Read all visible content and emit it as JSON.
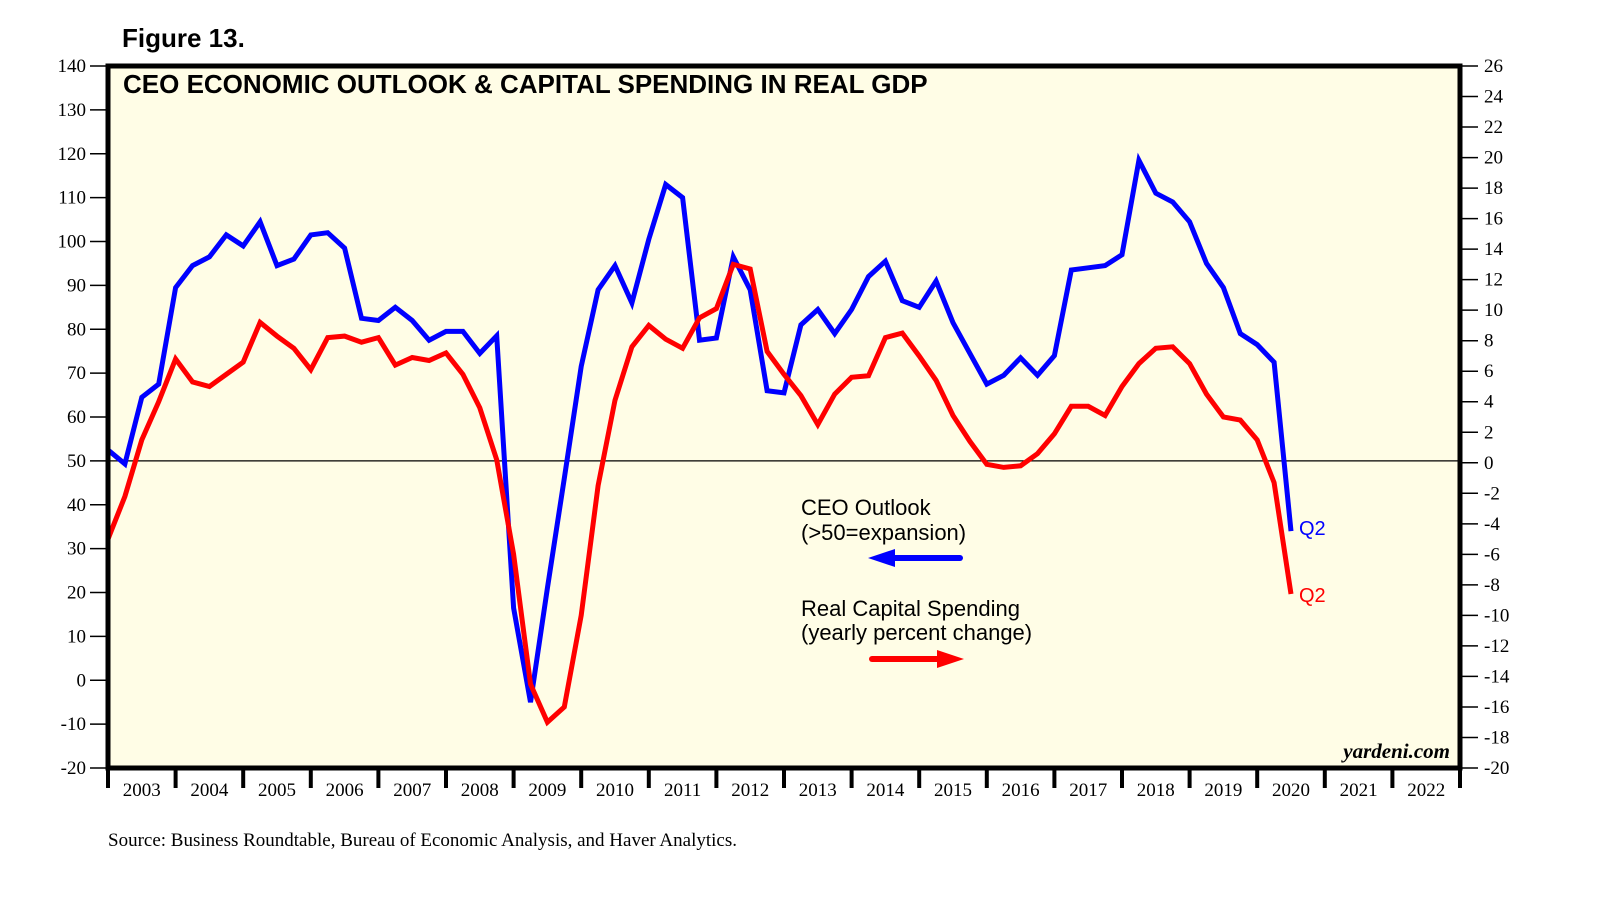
{
  "figure_label": "Figure 13.",
  "source_note": "Source: Business Roundtable, Bureau of Economic Analysis, and Haver Analytics.",
  "watermark": "yardeni.com",
  "chart_data": {
    "type": "line",
    "title": "CEO ECONOMIC OUTLOOK & CAPITAL SPENDING IN REAL GDP",
    "x_unit": "quarter",
    "x_start": "2003 Q1",
    "x_tick_labels": [
      "2003",
      "2004",
      "2005",
      "2006",
      "2007",
      "2008",
      "2009",
      "2010",
      "2011",
      "2012",
      "2013",
      "2014",
      "2015",
      "2016",
      "2017",
      "2018",
      "2019",
      "2020",
      "2021",
      "2022"
    ],
    "x_range": [
      "2003 Q1",
      "2022 Q4"
    ],
    "left_axis": {
      "label": "CEO Outlook",
      "ylim": [
        -20,
        140
      ],
      "ticks": [
        -20,
        -10,
        0,
        10,
        20,
        30,
        40,
        50,
        60,
        70,
        80,
        90,
        100,
        110,
        120,
        130,
        140
      ]
    },
    "right_axis": {
      "label": "Real Capital Spending (yearly percent change)",
      "ylim": [
        -20,
        26
      ],
      "ticks": [
        -20,
        -18,
        -16,
        -14,
        -12,
        -10,
        -8,
        -6,
        -4,
        -2,
        0,
        2,
        4,
        6,
        8,
        10,
        12,
        14,
        16,
        18,
        20,
        22,
        24,
        26
      ]
    },
    "reference_line": {
      "axis": "left",
      "value": 50
    },
    "grid": false,
    "background": "#fffde6",
    "series": [
      {
        "name": "CEO Outlook",
        "axis": "left",
        "color": "#0000ff",
        "end_label": "Q2",
        "values": [
          52.5,
          49.3,
          64.5,
          67.5,
          89.5,
          94.5,
          96.5,
          101.5,
          99,
          104.5,
          94.5,
          96,
          101.5,
          102,
          98.5,
          82.5,
          82,
          85,
          82,
          77.5,
          79.5,
          79.5,
          74.5,
          78.5,
          16.5,
          -5,
          21,
          46,
          71.5,
          89,
          94.5,
          86,
          100.5,
          113,
          110,
          77.5,
          78,
          96.5,
          89,
          66,
          65.5,
          81,
          84.5,
          79,
          84.5,
          92,
          95.5,
          86.5,
          85,
          91,
          81.5,
          74.5,
          67.5,
          69.5,
          73.5,
          69.5,
          74,
          93.5,
          94,
          94.5,
          97,
          118.5,
          111,
          109,
          104.5,
          95,
          89.5,
          79,
          76.5,
          72.5,
          34
        ]
      },
      {
        "name": "Real Capital Spending",
        "axis": "right",
        "color": "#ff0000",
        "end_label": "Q2",
        "values": [
          -5,
          -2.2,
          1.5,
          4,
          6.8,
          5.3,
          5,
          5.8,
          6.6,
          9.2,
          8.3,
          7.5,
          6.1,
          8.2,
          8.3,
          7.9,
          8.2,
          6.4,
          6.9,
          6.7,
          7.2,
          5.8,
          3.6,
          0.2,
          -6,
          -14.5,
          -17,
          -16,
          -10,
          -1.5,
          4.1,
          7.6,
          9,
          8.1,
          7.5,
          9.5,
          10.1,
          13,
          12.7,
          7.3,
          5.8,
          4.4,
          2.5,
          4.5,
          5.6,
          5.7,
          8.2,
          8.5,
          7,
          5.4,
          3.1,
          1.4,
          -0.1,
          -0.3,
          -0.2,
          0.6,
          1.9,
          3.7,
          3.7,
          3.1,
          5,
          6.5,
          7.5,
          7.6,
          6.5,
          4.5,
          3,
          2.8,
          1.5,
          -1.3,
          -8.6
        ]
      }
    ],
    "legend": [
      {
        "text_lines": [
          "CEO Outlook",
          "(>50=expansion)"
        ],
        "arrow": "left",
        "color": "#0000ff",
        "placement": "center-right"
      },
      {
        "text_lines": [
          "Real Capital Spending",
          "(yearly percent change)"
        ],
        "arrow": "right",
        "color": "#ff0000",
        "placement": "center-right"
      }
    ]
  }
}
